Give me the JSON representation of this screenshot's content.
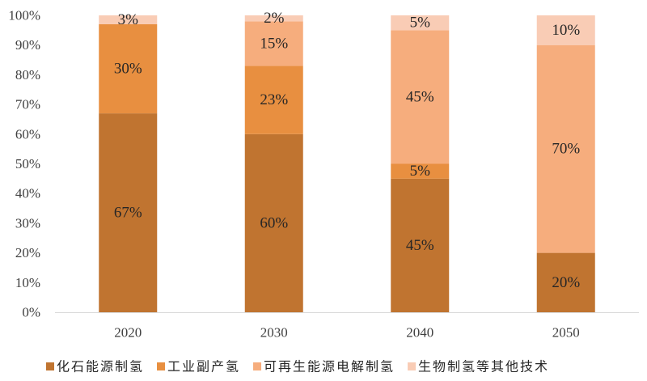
{
  "chart_data": {
    "type": "bar",
    "stacked": true,
    "title": "",
    "xlabel": "",
    "ylabel": "",
    "ylim": [
      0,
      100
    ],
    "y_ticks": [
      "0%",
      "10%",
      "20%",
      "30%",
      "40%",
      "50%",
      "60%",
      "70%",
      "80%",
      "90%",
      "100%"
    ],
    "categories": [
      "2020",
      "2030",
      "2040",
      "2050"
    ],
    "series": [
      {
        "name": "化石能源制氢",
        "color": "#c07430",
        "values": [
          67,
          60,
          45,
          20
        ],
        "labels": [
          "67%",
          "60%",
          "45%",
          "20%"
        ]
      },
      {
        "name": "工业副产氢",
        "color": "#e88f40",
        "values": [
          30,
          23,
          5,
          0
        ],
        "labels": [
          "30%",
          "23%",
          "5%",
          ""
        ]
      },
      {
        "name": "可再生能源电解制氢",
        "color": "#f6ad7d",
        "values": [
          0,
          15,
          45,
          70
        ],
        "labels": [
          "",
          "15%",
          "45%",
          "70%"
        ]
      },
      {
        "name": "生物制氢等其他技术",
        "color": "#f9ccb5",
        "values": [
          3,
          2,
          5,
          10
        ],
        "labels": [
          "3%",
          "2%",
          "5%",
          "10%"
        ]
      }
    ],
    "grid": false,
    "legend_position": "bottom"
  }
}
